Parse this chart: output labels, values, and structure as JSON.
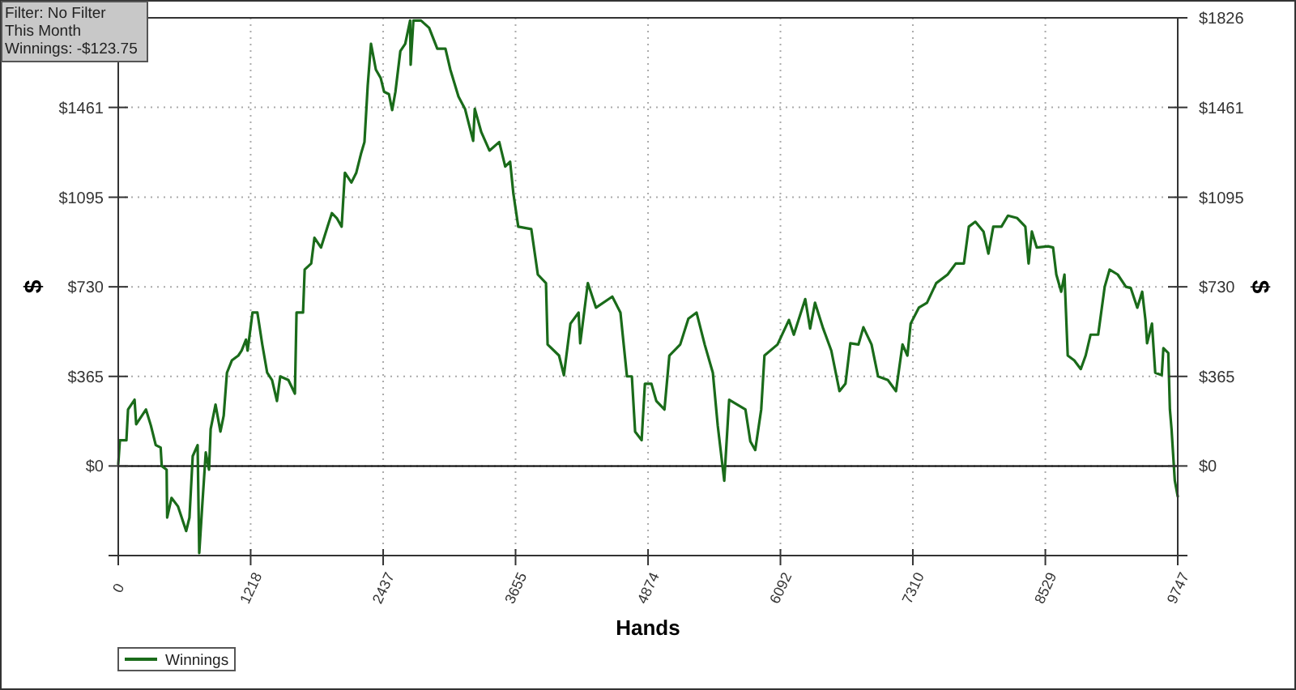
{
  "chart_data": {
    "type": "line",
    "xlabel": "Hands",
    "ylabel": "$",
    "y2label": "$",
    "annotations": [
      "Filter: No Filter",
      "This Month",
      "Winnings: -$123.75"
    ],
    "xlim": [
      0,
      9747
    ],
    "xticks": [
      0,
      1218,
      2437,
      3655,
      4874,
      6092,
      7310,
      8529,
      9747
    ],
    "ylim": [
      -365,
      1826
    ],
    "yticks": [
      {
        "value": -365,
        "label": null
      },
      {
        "value": 0,
        "label": "$0"
      },
      {
        "value": 365,
        "label": "$365"
      },
      {
        "value": 730,
        "label": "$730"
      },
      {
        "value": 1095,
        "label": "$1095"
      },
      {
        "value": 1461,
        "label": "$1461"
      },
      {
        "value": 1826,
        "label": null
      }
    ],
    "y2lim": [
      -365,
      1826
    ],
    "y2ticks": [
      {
        "value": -365,
        "label": null
      },
      {
        "value": 0,
        "label": "$0"
      },
      {
        "value": 365,
        "label": "$365"
      },
      {
        "value": 730,
        "label": "$730"
      },
      {
        "value": 1095,
        "label": "$1095"
      },
      {
        "value": 1461,
        "label": "$1461"
      },
      {
        "value": 1826,
        "label": "$1826"
      }
    ],
    "grid": true,
    "legend": "bottom left",
    "marker": "none",
    "line_style": "solid",
    "ref_lines": [
      {
        "axis": "y",
        "value": 0,
        "color": "#000000"
      }
    ],
    "series": [
      {
        "name": "Winnings",
        "color": "#1a6b1a",
        "x": [
          0,
          15,
          75,
          90,
          150,
          165,
          255,
          300,
          345,
          390,
          400,
          445,
          450,
          490,
          550,
          625,
          655,
          685,
          730,
          745,
          775,
          805,
          835,
          850,
          895,
          940,
          970,
          1000,
          1045,
          1105,
          1135,
          1175,
          1190,
          1235,
          1280,
          1325,
          1370,
          1415,
          1460,
          1490,
          1565,
          1625,
          1640,
          1700,
          1715,
          1775,
          1805,
          1865,
          1925,
          1965,
          2010,
          2055,
          2085,
          2145,
          2190,
          2235,
          2265,
          2295,
          2325,
          2370,
          2415,
          2445,
          2490,
          2520,
          2550,
          2595,
          2640,
          2685,
          2690,
          2715,
          2785,
          2860,
          2935,
          3010,
          3055,
          3130,
          3190,
          3265,
          3280,
          3340,
          3415,
          3505,
          3560,
          3605,
          3635,
          3680,
          3800,
          3860,
          3935,
          3950,
          4055,
          4100,
          4160,
          4235,
          4250,
          4320,
          4395,
          4545,
          4620,
          4680,
          4725,
          4755,
          4815,
          4845,
          4905,
          4950,
          5025,
          5070,
          5170,
          5245,
          5320,
          5395,
          5470,
          5515,
          5575,
          5620,
          5770,
          5815,
          5860,
          5915,
          5945,
          6065,
          6170,
          6215,
          6320,
          6365,
          6410,
          6485,
          6560,
          6635,
          6690,
          6735,
          6810,
          6855,
          6930,
          6990,
          7080,
          7155,
          7215,
          7260,
          7290,
          7365,
          7440,
          7525,
          7630,
          7705,
          7780,
          7825,
          7885,
          7960,
          8005,
          8050,
          8125,
          8185,
          8270,
          8345,
          8375,
          8405,
          8450,
          8555,
          8600,
          8630,
          8675,
          8705,
          8735,
          8795,
          8855,
          8900,
          8945,
          9015,
          9075,
          9120,
          9195,
          9270,
          9315,
          9375,
          9420,
          9450,
          9465,
          9510,
          9540,
          9600,
          9615,
          9660,
          9675,
          9690,
          9720,
          9747
        ],
        "values": [
          7,
          105,
          105,
          230,
          270,
          170,
          230,
          165,
          85,
          75,
          0,
          -15,
          -210,
          -130,
          -165,
          -265,
          -210,
          40,
          85,
          -355,
          -145,
          55,
          -15,
          150,
          250,
          140,
          205,
          380,
          430,
          450,
          470,
          515,
          470,
          625,
          625,
          495,
          380,
          350,
          265,
          365,
          350,
          295,
          625,
          625,
          800,
          825,
          930,
          890,
          975,
          1030,
          1010,
          975,
          1195,
          1155,
          1195,
          1275,
          1320,
          1550,
          1720,
          1615,
          1580,
          1525,
          1515,
          1450,
          1525,
          1690,
          1720,
          1815,
          1635,
          1815,
          1815,
          1785,
          1700,
          1700,
          1615,
          1505,
          1455,
          1325,
          1455,
          1360,
          1285,
          1320,
          1220,
          1240,
          1110,
          975,
          965,
          780,
          745,
          495,
          450,
          370,
          580,
          625,
          500,
          745,
          645,
          690,
          625,
          365,
          365,
          140,
          105,
          335,
          335,
          265,
          230,
          450,
          495,
          600,
          625,
          495,
          380,
          165,
          -60,
          270,
          230,
          100,
          65,
          230,
          450,
          495,
          595,
          535,
          680,
          560,
          665,
          560,
          470,
          305,
          335,
          500,
          495,
          565,
          495,
          365,
          350,
          305,
          495,
          450,
          580,
          645,
          665,
          745,
          780,
          825,
          825,
          975,
          995,
          955,
          865,
          975,
          975,
          1020,
          1010,
          975,
          825,
          955,
          890,
          895,
          890,
          780,
          710,
          780,
          450,
          430,
          395,
          450,
          535,
          535,
          730,
          800,
          780,
          730,
          725,
          645,
          710,
          595,
          500,
          580,
          380,
          370,
          480,
          460,
          230,
          150,
          -60,
          -124
        ]
      }
    ]
  }
}
